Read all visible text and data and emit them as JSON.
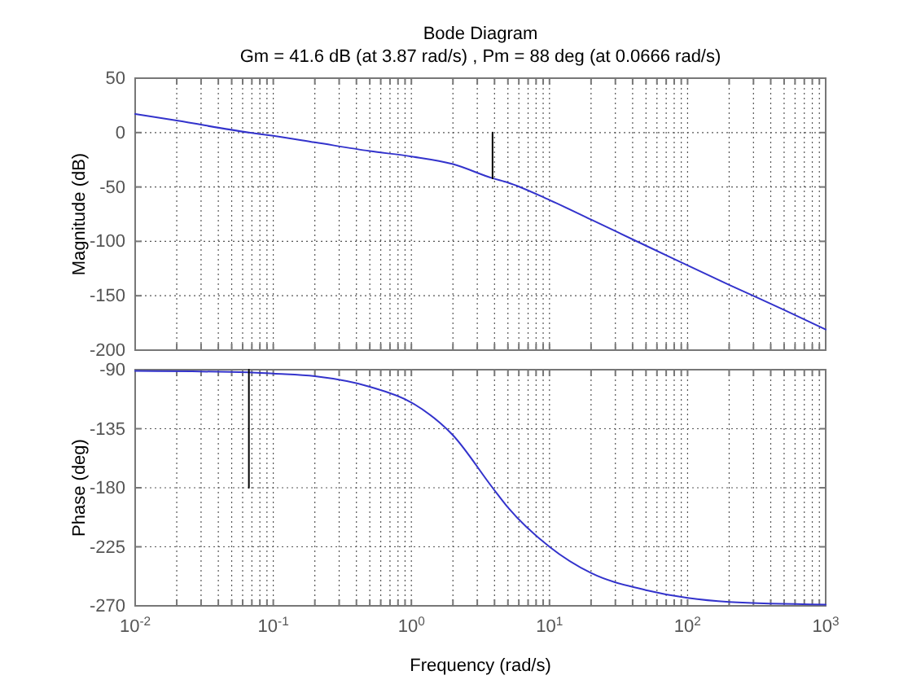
{
  "chart_data": [
    {
      "type": "line",
      "title": "Bode Diagram",
      "subtitle": "Gm = 41.6 dB (at 3.87 rad/s) ,  Pm = 88 deg (at 0.0666 rad/s)",
      "ylabel": "Magnitude (dB)",
      "log": "x",
      "grid": true,
      "tick_labels": "y",
      "xlim": [
        0.01,
        1000
      ],
      "ylim": [
        -200,
        50
      ],
      "yticks": [
        -200,
        -150,
        -100,
        -50,
        0,
        50
      ],
      "xticks": [
        {
          "value": 0.01,
          "label": null
        },
        {
          "value": 0.02,
          "label": null
        },
        {
          "value": 0.03,
          "label": null
        },
        {
          "value": 0.04,
          "label": null
        },
        {
          "value": 0.05,
          "label": null
        },
        {
          "value": 0.06,
          "label": null
        },
        {
          "value": 0.07,
          "label": null
        },
        {
          "value": 0.08,
          "label": null
        },
        {
          "value": 0.09,
          "label": null
        },
        {
          "value": 0.1,
          "label": null
        },
        {
          "value": 0.2,
          "label": null
        },
        {
          "value": 0.3,
          "label": null
        },
        {
          "value": 0.4,
          "label": null
        },
        {
          "value": 0.5,
          "label": null
        },
        {
          "value": 0.6,
          "label": null
        },
        {
          "value": 0.7,
          "label": null
        },
        {
          "value": 0.8,
          "label": null
        },
        {
          "value": 0.9,
          "label": null
        },
        {
          "value": 1,
          "label": null
        },
        {
          "value": 2,
          "label": null
        },
        {
          "value": 3,
          "label": null
        },
        {
          "value": 4,
          "label": null
        },
        {
          "value": 5,
          "label": null
        },
        {
          "value": 6,
          "label": null
        },
        {
          "value": 7,
          "label": null
        },
        {
          "value": 8,
          "label": null
        },
        {
          "value": 9,
          "label": null
        },
        {
          "value": 10,
          "label": null
        },
        {
          "value": 20,
          "label": null
        },
        {
          "value": 30,
          "label": null
        },
        {
          "value": 40,
          "label": null
        },
        {
          "value": 50,
          "label": null
        },
        {
          "value": 60,
          "label": null
        },
        {
          "value": 70,
          "label": null
        },
        {
          "value": 80,
          "label": null
        },
        {
          "value": 90,
          "label": null
        },
        {
          "value": 100,
          "label": null
        },
        {
          "value": 200,
          "label": null
        },
        {
          "value": 300,
          "label": null
        },
        {
          "value": 400,
          "label": null
        },
        {
          "value": 500,
          "label": null
        },
        {
          "value": 600,
          "label": null
        },
        {
          "value": 700,
          "label": null
        },
        {
          "value": 800,
          "label": null
        },
        {
          "value": 900,
          "label": null
        },
        {
          "value": 1000,
          "label": null
        }
      ],
      "series": [
        {
          "color": "#3333cc",
          "x": [
            0.01,
            0.02,
            0.0666,
            0.1,
            0.2,
            0.5,
            1,
            2,
            3.87,
            5,
            10,
            20,
            50,
            100,
            200,
            500,
            1000
          ],
          "values": [
            17,
            11,
            0,
            -3,
            -9,
            -17,
            -22,
            -29,
            -42,
            -46,
            -62,
            -80,
            -104,
            -122,
            -140,
            -163,
            -181
          ]
        },
        {
          "color": "#000000",
          "x": [
            3.87,
            3.87
          ],
          "values": [
            0,
            -42
          ]
        }
      ]
    },
    {
      "type": "line",
      "xlabel": "Frequency  (rad/s)",
      "ylabel": "Phase (deg)",
      "log": "x",
      "grid": true,
      "xlim": [
        0.01,
        1000
      ],
      "ylim": [
        -270,
        -90
      ],
      "yticks": [
        -270,
        -225,
        -180,
        -135,
        -90
      ],
      "xticks": [
        {
          "value": 0.01,
          "label": "10$^{-2}$"
        },
        {
          "value": 0.02,
          "label": null
        },
        {
          "value": 0.03,
          "label": null
        },
        {
          "value": 0.04,
          "label": null
        },
        {
          "value": 0.05,
          "label": null
        },
        {
          "value": 0.06,
          "label": null
        },
        {
          "value": 0.07,
          "label": null
        },
        {
          "value": 0.08,
          "label": null
        },
        {
          "value": 0.09,
          "label": null
        },
        {
          "value": 0.1,
          "label": "10$^{-1}$"
        },
        {
          "value": 0.2,
          "label": null
        },
        {
          "value": 0.3,
          "label": null
        },
        {
          "value": 0.4,
          "label": null
        },
        {
          "value": 0.5,
          "label": null
        },
        {
          "value": 0.6,
          "label": null
        },
        {
          "value": 0.7,
          "label": null
        },
        {
          "value": 0.8,
          "label": null
        },
        {
          "value": 0.9,
          "label": null
        },
        {
          "value": 1,
          "label": "10$^{0}$"
        },
        {
          "value": 2,
          "label": null
        },
        {
          "value": 3,
          "label": null
        },
        {
          "value": 4,
          "label": null
        },
        {
          "value": 5,
          "label": null
        },
        {
          "value": 6,
          "label": null
        },
        {
          "value": 7,
          "label": null
        },
        {
          "value": 8,
          "label": null
        },
        {
          "value": 9,
          "label": null
        },
        {
          "value": 10,
          "label": "10$^{1}$"
        },
        {
          "value": 20,
          "label": null
        },
        {
          "value": 30,
          "label": null
        },
        {
          "value": 40,
          "label": null
        },
        {
          "value": 50,
          "label": null
        },
        {
          "value": 60,
          "label": null
        },
        {
          "value": 70,
          "label": null
        },
        {
          "value": 80,
          "label": null
        },
        {
          "value": 90,
          "label": null
        },
        {
          "value": 100,
          "label": "10$^{2}$"
        },
        {
          "value": 200,
          "label": null
        },
        {
          "value": 300,
          "label": null
        },
        {
          "value": 400,
          "label": null
        },
        {
          "value": 500,
          "label": null
        },
        {
          "value": 600,
          "label": null
        },
        {
          "value": 700,
          "label": null
        },
        {
          "value": 800,
          "label": null
        },
        {
          "value": 900,
          "label": null
        },
        {
          "value": 1000,
          "label": "10$^{3}$"
        }
      ],
      "series": [
        {
          "color": "#3333cc",
          "x": [
            0.01,
            0.0666,
            0.1,
            0.2,
            0.5,
            1,
            2,
            3.87,
            5,
            10,
            20,
            50,
            100,
            200,
            1000
          ],
          "values": [
            -91,
            -92,
            -93,
            -95,
            -103,
            -115,
            -140,
            -180,
            -195,
            -225,
            -245,
            -258,
            -264,
            -267,
            -269
          ]
        },
        {
          "color": "#000000",
          "x": [
            0.0666,
            0.0666
          ],
          "values": [
            -90,
            -180
          ]
        }
      ]
    }
  ]
}
